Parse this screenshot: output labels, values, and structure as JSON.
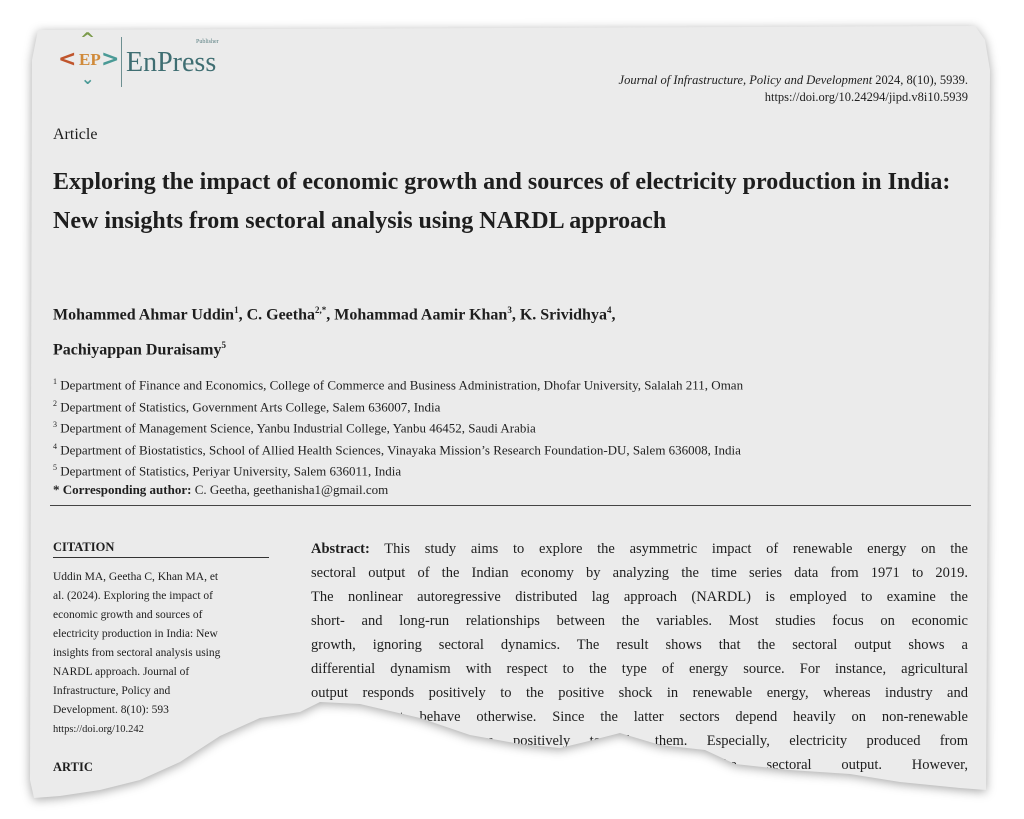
{
  "logo": {
    "mark": "EP",
    "name": "EnPress",
    "sub": "Publisher",
    "colors": {
      "top": "#7a9a4a",
      "left": "#c0552c",
      "right": "#4a9a96",
      "bottom": "#4a9a96",
      "center": "#d08a3a",
      "text": "#3f6e72"
    }
  },
  "journal": {
    "name": "Journal of Infrastructure, Policy and Development",
    "info": " 2024, 8(10), 5939.",
    "doi": "https://doi.org/10.24294/jipd.v8i10.5939"
  },
  "article_type": "Article",
  "title": "Exploring the impact of economic growth and sources of electricity production in India: New insights from sectoral analysis using NARDL approach",
  "authors": [
    {
      "name": "Mohammed Ahmar Uddin",
      "sup": "1",
      "sep": ", "
    },
    {
      "name": "C. Geetha",
      "sup": "2,*",
      "sep": ", "
    },
    {
      "name": "Mohammad Aamir Khan",
      "sup": "3",
      "sep": ", "
    },
    {
      "name": "K. Srividhya",
      "sup": "4",
      "sep": ","
    },
    {
      "name": "Pachiyappan Duraisamy",
      "sup": "5",
      "sep": ""
    }
  ],
  "affiliations": [
    {
      "n": "1",
      "text": "Department of Finance and Economics, College of Commerce and Business Administration, Dhofar University, Salalah 211, Oman"
    },
    {
      "n": "2",
      "text": "Department of Statistics, Government Arts College, Salem 636007, India"
    },
    {
      "n": "3",
      "text": "Department of Management Science, Yanbu Industrial College, Yanbu 46452, Saudi Arabia"
    },
    {
      "n": "4",
      "text": "Department of Biostatistics, School of Allied Health Sciences, Vinayaka Mission’s Research Foundation-DU, Salem 636008, India"
    },
    {
      "n": "5",
      "text": "Department of Statistics, Periyar University, Salem 636011, India"
    }
  ],
  "corresponding": {
    "label": "* Corresponding author:",
    "text": " C. Geetha, geethanisha1@gmail.com"
  },
  "citation": {
    "heading": "CITATION",
    "lines": [
      "Uddin MA, Geetha C, Khan MA, et",
      "al. (2024). Exploring the impact of",
      "economic growth and sources of",
      "electricity production in India: New",
      "insights from sectoral analysis using",
      "NARDL approach. Journal of",
      "Infrastructure, Policy and",
      "Development. 8(10): 593",
      "https://doi.org/10.242"
    ]
  },
  "article_info_heading": "ARTIC",
  "abstract": {
    "label": "Abstract:",
    "lines": [
      " This study aims to explore the asymmetric impact of renewable energy on the",
      "sectoral output of the Indian economy by analyzing the time series data from 1971 to 2019.",
      "The nonlinear autoregressive distributed lag approach (NARDL) is employed to examine the",
      "short- and long-run relationships between the variables. Most studies focus on economic",
      "growth, ignoring sectoral dynamics. The result shows that the sectoral output shows a",
      "differential dynamism with respect to the type of energy source. For instance, agricultural",
      "output responds positively to the positive shock in renewable energy, whereas industry and",
      "ice output behave otherwise. Since the latter sectors depend heavily on non-renewable",
      "rces, they behave positively towards them. Especially, electricity produced from",
      "ergy sources significantly affects the sectoral output. However,"
    ]
  }
}
